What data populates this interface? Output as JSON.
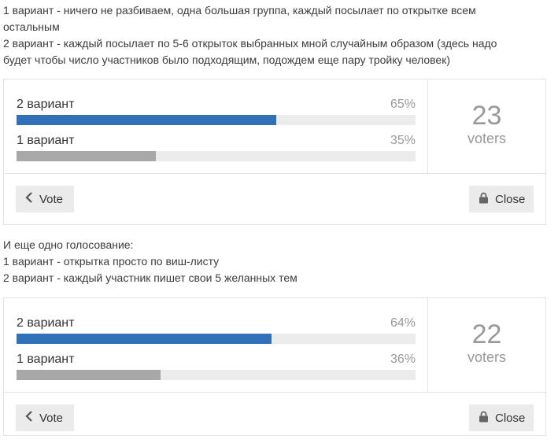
{
  "post1": {
    "lines": [
      "1 вариант - ничего не разбиваем, одна большая группа, каждый посылает по открытке всем",
      "остальным",
      "2 вариант - каждый посылает по 5-6 открыток выбранных мной случайным образом (здесь надо",
      "будет чтобы число участников было подходящим, подождем еще пару тройку человек)"
    ]
  },
  "poll1": {
    "options": [
      {
        "label": "2 вариант",
        "percent_text": "65%",
        "percent": 65,
        "color": "#3071b9"
      },
      {
        "label": "1 вариант",
        "percent_text": "35%",
        "percent": 35,
        "color": "#a8a8a8"
      }
    ],
    "voters_count": "23",
    "voters_label": "voters",
    "vote_label": "Vote",
    "close_label": "Close"
  },
  "post2": {
    "lines": [
      "И еще одно голосование:",
      "1 вариант - открытка просто по виш-листу",
      "2 вариант - каждый участник пишет свои 5 желанных тем"
    ]
  },
  "poll2": {
    "options": [
      {
        "label": "2 вариант",
        "percent_text": "64%",
        "percent": 64,
        "color": "#3071b9"
      },
      {
        "label": "1 вариант",
        "percent_text": "36%",
        "percent": 36,
        "color": "#a8a8a8"
      }
    ],
    "voters_count": "22",
    "voters_label": "voters",
    "vote_label": "Vote",
    "close_label": "Close"
  },
  "icons": {
    "vote": "chevron-left-icon",
    "close": "lock-icon"
  }
}
